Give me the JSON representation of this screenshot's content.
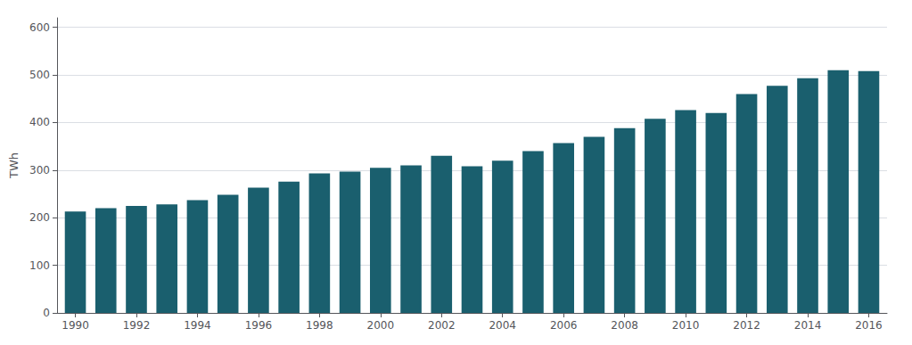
{
  "chart_data": {
    "type": "bar",
    "ylabel": "TWh",
    "x": [
      1990,
      1991,
      1992,
      1993,
      1994,
      1995,
      1996,
      1997,
      1998,
      1999,
      2000,
      2001,
      2002,
      2003,
      2004,
      2005,
      2006,
      2007,
      2008,
      2009,
      2010,
      2011,
      2012,
      2013,
      2014,
      2015,
      2016
    ],
    "values": [
      213,
      220,
      225,
      228,
      237,
      248,
      263,
      276,
      293,
      297,
      305,
      310,
      330,
      308,
      320,
      340,
      357,
      370,
      388,
      408,
      426,
      420,
      460,
      477,
      493,
      510,
      508
    ],
    "color": "#1a5f6e",
    "xlim": [
      1989.4,
      2016.6
    ],
    "xticks": [
      1990,
      1992,
      1994,
      1996,
      1998,
      2000,
      2002,
      2004,
      2006,
      2008,
      2010,
      2012,
      2014,
      2016
    ],
    "ylim": [
      0,
      620
    ],
    "yticks": [
      0,
      100,
      200,
      300,
      400,
      500,
      600
    ],
    "grid": true
  }
}
